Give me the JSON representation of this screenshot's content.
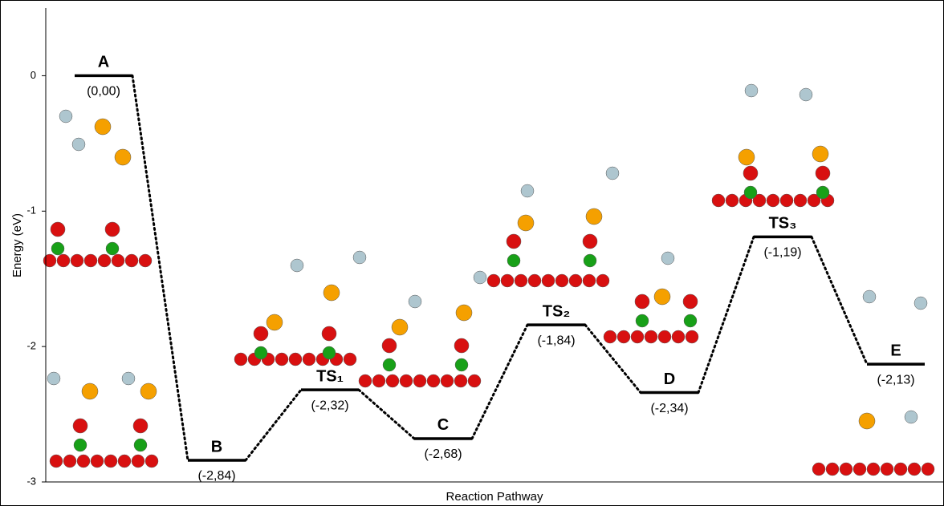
{
  "chart_data": {
    "type": "energy-profile",
    "y_label": "Energy (eV)",
    "x_label": "Reaction Pathway",
    "categories": [
      "A",
      "B",
      "TS₁",
      "C",
      "TS₂",
      "D",
      "TS₃",
      "E"
    ],
    "values": [
      0,
      -2.84,
      -2.32,
      -2.68,
      -1.84,
      -2.34,
      -1.19,
      -2.13
    ],
    "value_labels": [
      "(0,00)",
      "(-2,84)",
      "(-2,32)",
      "(-2,68)",
      "(-1,84)",
      "(-2,34)",
      "(-1,19)",
      "(-2,13)"
    ],
    "color": "#000000",
    "ylim": [
      -3,
      0.5
    ],
    "yticks": [
      0,
      -1,
      -2,
      -3
    ]
  }
}
